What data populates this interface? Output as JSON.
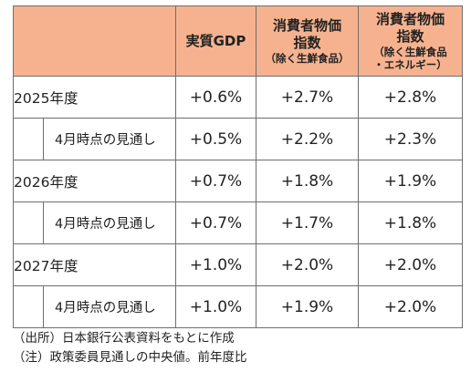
{
  "header": {
    "col1": "",
    "col2": "実質GDP",
    "col3_title": "消費者物価\n指数",
    "col3_sub": "（除く生鮮食品）",
    "col4_title": "消費者物価\n指数",
    "col4_sub": "（除く生鮮食品\n・エネルギー）"
  },
  "rows": [
    {
      "label": "2025年度",
      "gdp": "+0.6%",
      "cpi": "+2.7%",
      "core": "+2.8%"
    },
    {
      "label": "4月時点の見通し",
      "gdp": "+0.5%",
      "cpi": "+2.2%",
      "core": "+2.3%"
    },
    {
      "label": "2026年度",
      "gdp": "+0.7%",
      "cpi": "+1.8%",
      "core": "+1.9%"
    },
    {
      "label": "4月時点の見通し",
      "gdp": "+0.7%",
      "cpi": "+1.7%",
      "core": "+1.8%"
    },
    {
      "label": "2027年度",
      "gdp": "+1.0%",
      "cpi": "+2.0%",
      "core": "+2.0%"
    },
    {
      "label": "4月時点の見通し",
      "gdp": "+1.0%",
      "cpi": "+1.9%",
      "core": "+2.0%"
    }
  ],
  "notes": {
    "source": "（出所）日本銀行公表資料をもとに作成",
    "note": "（注）政策委員見通しの中央値。前年度比"
  },
  "colors": {
    "header_bg": "#f6b28f",
    "border": "#6e6e6e"
  }
}
